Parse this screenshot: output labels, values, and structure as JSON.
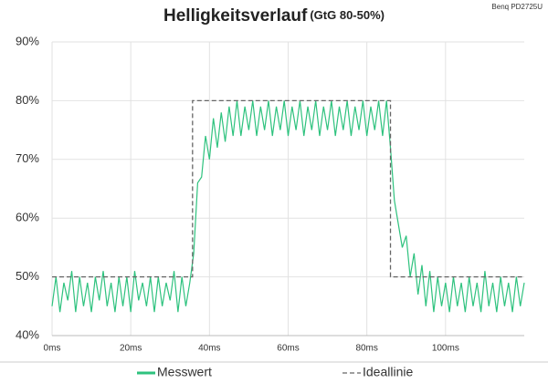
{
  "chart_data": {
    "type": "line",
    "title": "Helligkeitsverlauf",
    "subtitle": "(GtG 80-50%)",
    "source": "Benq PD2725U",
    "xlim": [
      0,
      120
    ],
    "xticks": [
      {
        "value": 0,
        "label": "0ms"
      },
      {
        "value": 20,
        "label": "20ms"
      },
      {
        "value": 40,
        "label": "40ms"
      },
      {
        "value": 60,
        "label": "60ms"
      },
      {
        "value": 80,
        "label": "80ms"
      },
      {
        "value": 100,
        "label": "100ms"
      }
    ],
    "ylim": [
      40,
      90
    ],
    "yticks": [
      {
        "value": 40,
        "label": "40%"
      },
      {
        "value": 50,
        "label": "50%"
      },
      {
        "value": 60,
        "label": "60%"
      },
      {
        "value": 70,
        "label": "70%"
      },
      {
        "value": 80,
        "label": "80%"
      },
      {
        "value": 90,
        "label": "90%"
      }
    ],
    "grid": true,
    "series": [
      {
        "name": "Messwert",
        "color": "#2ec27e",
        "dash": false,
        "x": [
          0,
          1,
          2,
          3,
          4,
          5,
          6,
          7,
          8,
          9,
          10,
          11,
          12,
          13,
          14,
          15,
          16,
          17,
          18,
          19,
          20,
          21,
          22,
          23,
          24,
          25,
          26,
          27,
          28,
          29,
          30,
          31,
          32,
          33,
          34,
          35,
          36,
          37,
          38,
          39,
          40,
          41,
          42,
          43,
          44,
          45,
          46,
          47,
          48,
          49,
          50,
          51,
          52,
          53,
          54,
          55,
          56,
          57,
          58,
          59,
          60,
          61,
          62,
          63,
          64,
          65,
          66,
          67,
          68,
          69,
          70,
          71,
          72,
          73,
          74,
          75,
          76,
          77,
          78,
          79,
          80,
          81,
          82,
          83,
          84,
          85,
          86,
          87,
          88,
          89,
          90,
          91,
          92,
          93,
          94,
          95,
          96,
          97,
          98,
          99,
          100,
          101,
          102,
          103,
          104,
          105,
          106,
          107,
          108,
          109,
          110,
          111,
          112,
          113,
          114,
          115,
          116,
          117,
          118,
          119,
          120
        ],
        "values": [
          45,
          50,
          44,
          49,
          46,
          51,
          44,
          50,
          45,
          49,
          44,
          50,
          46,
          51,
          45,
          49,
          44,
          50,
          45,
          50,
          44,
          51,
          46,
          49,
          45,
          50,
          44,
          50,
          45,
          49,
          46,
          51,
          44,
          50,
          45,
          49,
          54,
          66,
          67,
          74,
          70,
          77,
          72,
          78,
          73,
          79,
          74,
          80,
          74,
          79,
          75,
          80,
          74,
          79,
          75,
          80,
          74,
          79,
          75,
          80,
          74,
          79,
          75,
          80,
          74,
          79,
          75,
          80,
          74,
          79,
          75,
          80,
          74,
          79,
          75,
          80,
          74,
          79,
          75,
          80,
          74,
          79,
          75,
          80,
          74,
          80,
          72,
          63,
          59,
          55,
          57,
          50,
          54,
          47,
          52,
          45,
          51,
          44,
          50,
          45,
          49,
          44,
          50,
          45,
          49,
          44,
          50,
          45,
          49,
          44,
          51,
          45,
          49,
          44,
          50,
          45,
          49,
          44,
          50,
          45,
          49
        ]
      },
      {
        "name": "Ideallinie",
        "color": "#666666",
        "dash": true,
        "x": [
          0,
          35.7,
          35.7,
          86,
          86,
          120
        ],
        "values": [
          50,
          50,
          80,
          80,
          50,
          50
        ]
      }
    ]
  }
}
